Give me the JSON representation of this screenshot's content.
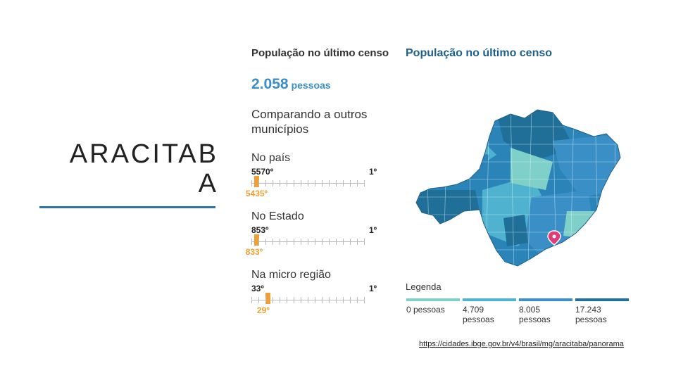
{
  "slide": {
    "title_line1": "ARACITAB",
    "title_line2": "A"
  },
  "panel": {
    "heading": "População no último censo",
    "population_value": "2.058",
    "population_unit": "pessoas",
    "compare_heading": "Comparando a outros municípios",
    "ranks": [
      {
        "label": "No país",
        "worst": "5570º",
        "best": "1º",
        "current": "5435º",
        "position_fraction": 0.024
      },
      {
        "label": "No Estado",
        "worst": "853º",
        "best": "1º",
        "current": "833º",
        "position_fraction": 0.023
      },
      {
        "label": "Na micro região",
        "worst": "33º",
        "best": "1º",
        "current": "29º",
        "position_fraction": 0.125
      }
    ],
    "accent_color": "#f0a033"
  },
  "map": {
    "title": "População no último censo",
    "pin_icon": "map-pin-icon",
    "legend_title": "Legenda",
    "legend": [
      {
        "label": "0 pessoas",
        "color": "#7fd0c8"
      },
      {
        "label": "4.709 pessoas",
        "color": "#4fb3cf"
      },
      {
        "label": "8.005 pessoas",
        "color": "#3a8fc6"
      },
      {
        "label": "17.243 pessoas",
        "color": "#1f6f98"
      }
    ]
  },
  "source": {
    "link": "https://cidades.ibge.gov.br/v4/brasil/mg/aracitaba/panorama"
  }
}
